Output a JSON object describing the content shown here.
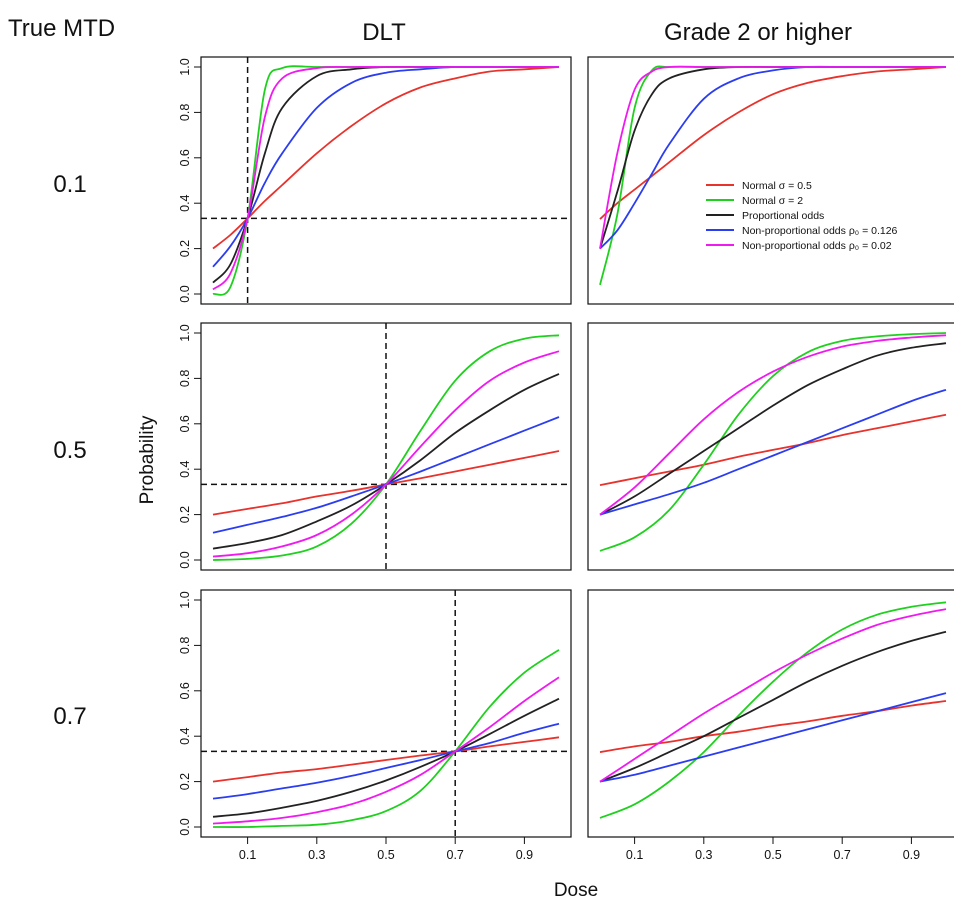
{
  "figure": {
    "corner_label": "True MTD",
    "column_titles": [
      "DLT",
      "Grade 2 or higher"
    ],
    "row_labels": [
      "0.1",
      "0.5",
      "0.7"
    ],
    "ylabel": "Probability",
    "xlabel": "Dose"
  },
  "legend": [
    {
      "label": "Normal σ = 0.5",
      "color": "#e8322c"
    },
    {
      "label": "Normal σ = 2",
      "color": "#1fd01f"
    },
    {
      "label": "Proportional odds",
      "color": "#222222"
    },
    {
      "label": "Non-proportional odds ρ₀ = 0.126",
      "color": "#2b3df0"
    },
    {
      "label": "Non-proportional odds ρ₀ = 0.02",
      "color": "#f019f0"
    }
  ],
  "chart_data": [
    {
      "type": "line",
      "row": 0,
      "col": 0,
      "title": "DLT",
      "row_label": "0.1",
      "xlim": [
        0,
        1
      ],
      "ylim": [
        0,
        1
      ],
      "x_ticks": [
        "0.1",
        "0.3",
        "0.5",
        "0.7",
        "0.9"
      ],
      "y_ticks": [
        "0.0",
        "0.2",
        "0.4",
        "0.6",
        "0.8",
        "1.0"
      ],
      "show_x_ticks": false,
      "ref_lines": {
        "x": 0.1,
        "y": 0.333
      },
      "x": [
        0,
        0.05,
        0.1,
        0.15,
        0.2,
        0.3,
        0.4,
        0.5,
        0.6,
        0.7,
        0.8,
        0.9,
        1.0
      ],
      "series": [
        {
          "name": "Normal σ = 0.5",
          "color": "#e8322c",
          "values": [
            0.2,
            0.26,
            0.333,
            0.41,
            0.48,
            0.62,
            0.74,
            0.84,
            0.91,
            0.95,
            0.98,
            0.99,
            1.0
          ]
        },
        {
          "name": "Normal σ = 2",
          "color": "#1fd01f",
          "values": [
            0.0,
            0.03,
            0.333,
            0.9,
            0.995,
            1.0,
            1.0,
            1.0,
            1.0,
            1.0,
            1.0,
            1.0,
            1.0
          ]
        },
        {
          "name": "Proportional odds",
          "color": "#222222",
          "values": [
            0.05,
            0.13,
            0.333,
            0.62,
            0.82,
            0.96,
            0.99,
            1.0,
            1.0,
            1.0,
            1.0,
            1.0,
            1.0
          ]
        },
        {
          "name": "Non-proportional odds ρ₀ = 0.126",
          "color": "#2b3df0",
          "values": [
            0.12,
            0.21,
            0.333,
            0.49,
            0.62,
            0.82,
            0.93,
            0.975,
            0.99,
            1.0,
            1.0,
            1.0,
            1.0
          ]
        },
        {
          "name": "Non-proportional odds ρ₀ = 0.02",
          "color": "#f019f0",
          "values": [
            0.02,
            0.09,
            0.333,
            0.78,
            0.95,
            0.995,
            1.0,
            1.0,
            1.0,
            1.0,
            1.0,
            1.0,
            1.0
          ]
        }
      ]
    },
    {
      "type": "line",
      "row": 0,
      "col": 1,
      "title": "Grade 2 or higher",
      "row_label": "0.1",
      "xlim": [
        0,
        1
      ],
      "ylim": [
        0,
        1
      ],
      "x_ticks": [
        "0.1",
        "0.3",
        "0.5",
        "0.7",
        "0.9"
      ],
      "y_ticks": [
        "0.0",
        "0.2",
        "0.4",
        "0.6",
        "0.8",
        "1.0"
      ],
      "show_x_ticks": false,
      "show_legend": true,
      "x": [
        0,
        0.05,
        0.1,
        0.15,
        0.2,
        0.3,
        0.4,
        0.5,
        0.6,
        0.7,
        0.8,
        0.9,
        1.0
      ],
      "series": [
        {
          "name": "Normal σ = 0.5",
          "color": "#e8322c",
          "values": [
            0.33,
            0.4,
            0.46,
            0.52,
            0.58,
            0.7,
            0.8,
            0.88,
            0.93,
            0.96,
            0.98,
            0.99,
            1.0
          ]
        },
        {
          "name": "Normal σ = 2",
          "color": "#1fd01f",
          "values": [
            0.04,
            0.35,
            0.82,
            0.985,
            1.0,
            1.0,
            1.0,
            1.0,
            1.0,
            1.0,
            1.0,
            1.0,
            1.0
          ]
        },
        {
          "name": "Proportional odds",
          "color": "#222222",
          "values": [
            0.2,
            0.45,
            0.72,
            0.88,
            0.95,
            0.99,
            1.0,
            1.0,
            1.0,
            1.0,
            1.0,
            1.0,
            1.0
          ]
        },
        {
          "name": "Non-proportional odds ρ₀ = 0.126",
          "color": "#2b3df0",
          "values": [
            0.2,
            0.28,
            0.4,
            0.53,
            0.66,
            0.86,
            0.95,
            0.985,
            1.0,
            1.0,
            1.0,
            1.0,
            1.0
          ]
        },
        {
          "name": "Non-proportional odds ρ₀ = 0.02",
          "color": "#f019f0",
          "values": [
            0.2,
            0.62,
            0.9,
            0.98,
            1.0,
            1.0,
            1.0,
            1.0,
            1.0,
            1.0,
            1.0,
            1.0,
            1.0
          ]
        }
      ]
    },
    {
      "type": "line",
      "row": 1,
      "col": 0,
      "title": "DLT",
      "row_label": "0.5",
      "xlim": [
        0,
        1
      ],
      "ylim": [
        0,
        1
      ],
      "x_ticks": [
        "0.1",
        "0.3",
        "0.5",
        "0.7",
        "0.9"
      ],
      "y_ticks": [
        "0.0",
        "0.2",
        "0.4",
        "0.6",
        "0.8",
        "1.0"
      ],
      "show_x_ticks": false,
      "ref_lines": {
        "x": 0.5,
        "y": 0.333
      },
      "x": [
        0,
        0.1,
        0.2,
        0.3,
        0.4,
        0.5,
        0.6,
        0.7,
        0.8,
        0.9,
        1.0
      ],
      "series": [
        {
          "name": "Normal σ = 0.5",
          "color": "#e8322c",
          "values": [
            0.2,
            0.225,
            0.25,
            0.28,
            0.305,
            0.333,
            0.36,
            0.39,
            0.42,
            0.45,
            0.48
          ]
        },
        {
          "name": "Normal σ = 2",
          "color": "#1fd01f",
          "values": [
            0.0,
            0.005,
            0.02,
            0.06,
            0.16,
            0.333,
            0.57,
            0.79,
            0.92,
            0.975,
            0.99
          ]
        },
        {
          "name": "Proportional odds",
          "color": "#222222",
          "values": [
            0.05,
            0.075,
            0.11,
            0.17,
            0.24,
            0.333,
            0.44,
            0.56,
            0.66,
            0.75,
            0.82
          ]
        },
        {
          "name": "Non-proportional odds ρ₀ = 0.126",
          "color": "#2b3df0",
          "values": [
            0.12,
            0.155,
            0.19,
            0.23,
            0.28,
            0.333,
            0.39,
            0.45,
            0.51,
            0.57,
            0.63
          ]
        },
        {
          "name": "Non-proportional odds ρ₀ = 0.02",
          "color": "#f019f0",
          "values": [
            0.015,
            0.03,
            0.06,
            0.11,
            0.2,
            0.333,
            0.5,
            0.66,
            0.79,
            0.87,
            0.92
          ]
        }
      ]
    },
    {
      "type": "line",
      "row": 1,
      "col": 1,
      "title": "Grade 2 or higher",
      "row_label": "0.5",
      "xlim": [
        0,
        1
      ],
      "ylim": [
        0,
        1
      ],
      "x_ticks": [
        "0.1",
        "0.3",
        "0.5",
        "0.7",
        "0.9"
      ],
      "y_ticks": [
        "0.0",
        "0.2",
        "0.4",
        "0.6",
        "0.8",
        "1.0"
      ],
      "show_x_ticks": false,
      "x": [
        0,
        0.1,
        0.2,
        0.3,
        0.4,
        0.5,
        0.6,
        0.7,
        0.8,
        0.9,
        1.0
      ],
      "series": [
        {
          "name": "Normal σ = 0.5",
          "color": "#e8322c",
          "values": [
            0.33,
            0.36,
            0.39,
            0.42,
            0.455,
            0.485,
            0.515,
            0.55,
            0.58,
            0.61,
            0.64
          ]
        },
        {
          "name": "Normal σ = 2",
          "color": "#1fd01f",
          "values": [
            0.04,
            0.1,
            0.22,
            0.42,
            0.64,
            0.81,
            0.915,
            0.965,
            0.985,
            0.995,
            1.0
          ]
        },
        {
          "name": "Proportional odds",
          "color": "#222222",
          "values": [
            0.2,
            0.28,
            0.38,
            0.48,
            0.58,
            0.68,
            0.77,
            0.84,
            0.9,
            0.935,
            0.955
          ]
        },
        {
          "name": "Non-proportional odds ρ₀ = 0.126",
          "color": "#2b3df0",
          "values": [
            0.2,
            0.245,
            0.29,
            0.34,
            0.4,
            0.46,
            0.52,
            0.58,
            0.64,
            0.7,
            0.75
          ]
        },
        {
          "name": "Non-proportional odds ρ₀ = 0.02",
          "color": "#f019f0",
          "values": [
            0.2,
            0.32,
            0.47,
            0.62,
            0.74,
            0.83,
            0.895,
            0.94,
            0.965,
            0.98,
            0.99
          ]
        }
      ]
    },
    {
      "type": "line",
      "row": 2,
      "col": 0,
      "title": "DLT",
      "row_label": "0.7",
      "xlim": [
        0,
        1
      ],
      "ylim": [
        0,
        1
      ],
      "x_ticks": [
        "0.1",
        "0.3",
        "0.5",
        "0.7",
        "0.9"
      ],
      "y_ticks": [
        "0.0",
        "0.2",
        "0.4",
        "0.6",
        "0.8",
        "1.0"
      ],
      "show_x_ticks": true,
      "ref_lines": {
        "x": 0.7,
        "y": 0.333
      },
      "x": [
        0,
        0.1,
        0.2,
        0.3,
        0.4,
        0.5,
        0.6,
        0.7,
        0.8,
        0.9,
        1.0
      ],
      "series": [
        {
          "name": "Normal σ = 0.5",
          "color": "#e8322c",
          "values": [
            0.2,
            0.22,
            0.24,
            0.255,
            0.275,
            0.295,
            0.315,
            0.333,
            0.355,
            0.375,
            0.395
          ]
        },
        {
          "name": "Normal σ = 2",
          "color": "#1fd01f",
          "values": [
            0.0,
            0.0,
            0.005,
            0.01,
            0.03,
            0.07,
            0.16,
            0.333,
            0.53,
            0.68,
            0.78
          ]
        },
        {
          "name": "Proportional odds",
          "color": "#222222",
          "values": [
            0.045,
            0.06,
            0.085,
            0.115,
            0.155,
            0.205,
            0.265,
            0.333,
            0.41,
            0.49,
            0.565
          ]
        },
        {
          "name": "Non-proportional odds ρ₀ = 0.126",
          "color": "#2b3df0",
          "values": [
            0.125,
            0.145,
            0.17,
            0.195,
            0.225,
            0.26,
            0.295,
            0.333,
            0.37,
            0.415,
            0.455
          ]
        },
        {
          "name": "Non-proportional odds ρ₀ = 0.02",
          "color": "#f019f0",
          "values": [
            0.015,
            0.025,
            0.04,
            0.065,
            0.1,
            0.155,
            0.23,
            0.333,
            0.44,
            0.555,
            0.66
          ]
        }
      ]
    },
    {
      "type": "line",
      "row": 2,
      "col": 1,
      "title": "Grade 2 or higher",
      "row_label": "0.7",
      "xlim": [
        0,
        1
      ],
      "ylim": [
        0,
        1
      ],
      "x_ticks": [
        "0.1",
        "0.3",
        "0.5",
        "0.7",
        "0.9"
      ],
      "y_ticks": [
        "0.0",
        "0.2",
        "0.4",
        "0.6",
        "0.8",
        "1.0"
      ],
      "show_x_ticks": true,
      "x": [
        0,
        0.1,
        0.2,
        0.3,
        0.4,
        0.5,
        0.6,
        0.7,
        0.8,
        0.9,
        1.0
      ],
      "series": [
        {
          "name": "Normal σ = 0.5",
          "color": "#e8322c",
          "values": [
            0.33,
            0.355,
            0.375,
            0.4,
            0.42,
            0.445,
            0.465,
            0.49,
            0.51,
            0.535,
            0.555
          ]
        },
        {
          "name": "Normal σ = 2",
          "color": "#1fd01f",
          "values": [
            0.04,
            0.1,
            0.2,
            0.33,
            0.49,
            0.64,
            0.77,
            0.87,
            0.935,
            0.97,
            0.99
          ]
        },
        {
          "name": "Proportional odds",
          "color": "#222222",
          "values": [
            0.2,
            0.26,
            0.33,
            0.4,
            0.48,
            0.56,
            0.64,
            0.71,
            0.77,
            0.82,
            0.86
          ]
        },
        {
          "name": "Non-proportional odds ρ₀ = 0.126",
          "color": "#2b3df0",
          "values": [
            0.2,
            0.23,
            0.27,
            0.31,
            0.35,
            0.39,
            0.43,
            0.47,
            0.51,
            0.55,
            0.59
          ]
        },
        {
          "name": "Non-proportional odds ρ₀ = 0.02",
          "color": "#f019f0",
          "values": [
            0.2,
            0.3,
            0.4,
            0.5,
            0.59,
            0.68,
            0.76,
            0.83,
            0.89,
            0.93,
            0.96
          ]
        }
      ]
    }
  ]
}
